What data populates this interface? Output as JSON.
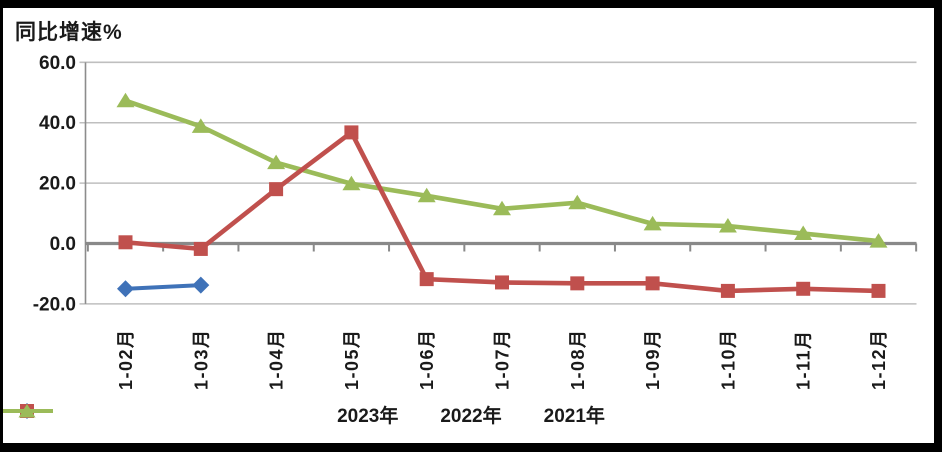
{
  "frame": {
    "background": "#ffffff",
    "border_color": "#000000"
  },
  "colors": {
    "grid": "#bfbfbf",
    "axis": "#8c8c8c",
    "zero_axis": "#898989",
    "text": "#1a1a1a"
  },
  "chart_data": {
    "type": "line",
    "title": "同比增速%",
    "xlabel": "",
    "ylabel": "同比增速%",
    "categories": [
      "1-02月",
      "1-03月",
      "1-04月",
      "1-05月",
      "1-06月",
      "1-07月",
      "1-08月",
      "1-09月",
      "1-10月",
      "1-11月",
      "1-12月"
    ],
    "series": [
      {
        "name": "2023年",
        "color": "#3f72b8",
        "marker": "diamond",
        "values": [
          -15.0,
          -13.8,
          null,
          null,
          null,
          null,
          null,
          null,
          null,
          null,
          null
        ]
      },
      {
        "name": "2022年",
        "color": "#c0504d",
        "marker": "square",
        "values": [
          0.4,
          -1.8,
          18.0,
          36.8,
          -11.8,
          -12.9,
          -13.2,
          -13.2,
          -15.7,
          -15.0,
          -15.7
        ]
      },
      {
        "name": "2021年",
        "color": "#9bbb59",
        "marker": "triangle",
        "values": [
          47.3,
          38.8,
          26.8,
          19.8,
          15.8,
          11.5,
          13.5,
          6.5,
          5.8,
          3.3,
          0.8
        ]
      }
    ],
    "ylim": [
      -20,
      60
    ],
    "yticks": {
      "values": [
        60,
        40,
        20,
        0,
        -20
      ],
      "labels": [
        "60.0",
        "40.0",
        "20.0",
        "0.0",
        "-20.0"
      ]
    },
    "grid": "horizontal",
    "legend_position": "bottom"
  }
}
